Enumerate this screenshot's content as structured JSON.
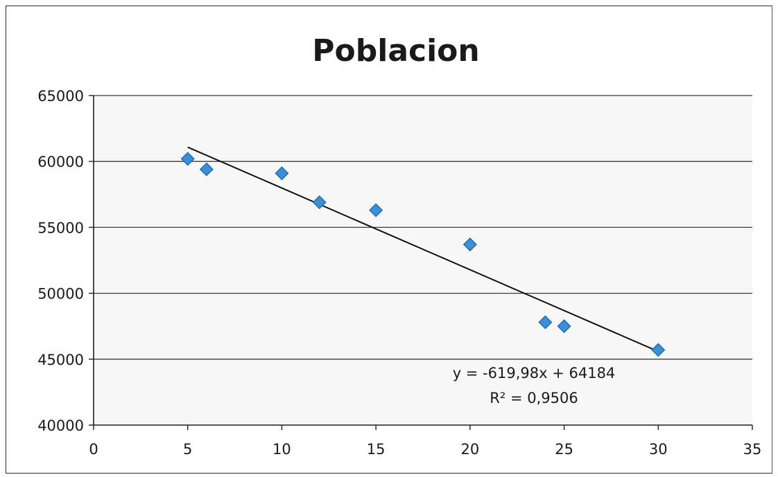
{
  "chart_data": {
    "type": "scatter",
    "title": "Poblacion",
    "xlabel": "",
    "ylabel": "",
    "xlim": [
      0,
      35
    ],
    "ylim": [
      40000,
      65000
    ],
    "x_ticks": [
      0,
      5,
      10,
      15,
      20,
      25,
      30,
      35
    ],
    "y_ticks": [
      40000,
      45000,
      50000,
      55000,
      60000,
      65000
    ],
    "x_tick_labels": [
      "0",
      "5",
      "10",
      "15",
      "20",
      "25",
      "30",
      "35"
    ],
    "y_tick_labels": [
      "40000",
      "45000",
      "50000",
      "55000",
      "60000",
      "65000"
    ],
    "grid": "horizontal",
    "legend": "none",
    "series": [
      {
        "color": "#3b8fd6",
        "marker": "diamond",
        "points": [
          {
            "x": 5,
            "y": 60200
          },
          {
            "x": 6,
            "y": 59400
          },
          {
            "x": 10,
            "y": 59100
          },
          {
            "x": 12,
            "y": 56900
          },
          {
            "x": 15,
            "y": 56300
          },
          {
            "x": 20,
            "y": 53700
          },
          {
            "x": 24,
            "y": 47800
          },
          {
            "x": 25,
            "y": 47500
          },
          {
            "x": 30,
            "y": 45700
          }
        ]
      }
    ],
    "trendline": {
      "type": "linear",
      "slope": -619.98,
      "intercept": 64184,
      "x_range": [
        5,
        30
      ],
      "color": "#111111",
      "equation_text": "y = -619,98x + 64184",
      "r2_text": "R² = 0,9506"
    }
  }
}
